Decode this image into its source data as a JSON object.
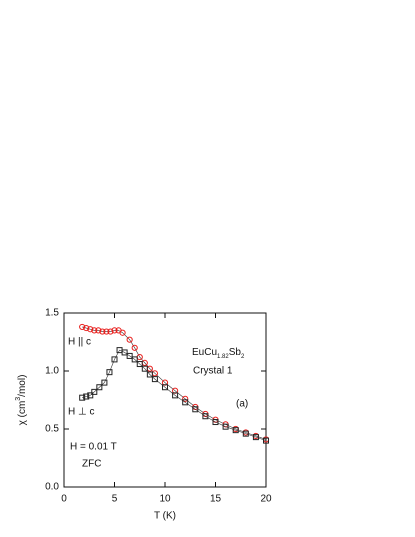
{
  "chart_data": {
    "type": "scatter",
    "xlabel": "T (K)",
    "ylabel_parts": [
      "χ (cm",
      "3",
      "/mol)"
    ],
    "formula_parts": [
      "EuCu",
      "1.82",
      "Sb",
      "2"
    ],
    "annotations": [
      "Crystal 1",
      "(a)",
      "H || c",
      "H ⊥ c",
      "H = 0.01 T",
      "ZFC"
    ],
    "xlim": [
      0,
      20
    ],
    "ylim": [
      0,
      1.5
    ],
    "xticks": [
      0,
      5,
      10,
      15,
      20
    ],
    "yticks": [
      {
        "value": 0,
        "label": "0.0"
      },
      {
        "value": 0.5,
        "label": "0.5"
      },
      {
        "value": 1,
        "label": "1.0"
      },
      {
        "value": 1.5,
        "label": "1.5"
      }
    ],
    "series": [
      {
        "marker": "circle",
        "color": "#e8201e",
        "x": [
          1.8,
          2.2,
          2.6,
          3.0,
          3.4,
          3.8,
          4.2,
          4.6,
          5.0,
          5.4,
          5.8,
          6.5,
          7,
          7.5,
          8,
          8.5,
          9,
          10,
          11,
          12,
          13,
          14,
          15,
          16,
          17,
          18,
          19,
          20
        ],
        "values": [
          1.38,
          1.37,
          1.36,
          1.35,
          1.35,
          1.34,
          1.34,
          1.34,
          1.35,
          1.35,
          1.33,
          1.27,
          1.2,
          1.12,
          1.07,
          1.02,
          0.98,
          0.9,
          0.83,
          0.76,
          0.69,
          0.63,
          0.58,
          0.54,
          0.5,
          0.47,
          0.44,
          0.41
        ]
      },
      {
        "marker": "square",
        "color": "#222222",
        "x": [
          1.8,
          2.2,
          2.6,
          3.0,
          3.5,
          4.0,
          4.5,
          5.0,
          5.5,
          6.0,
          6.5,
          7,
          7.5,
          8,
          8.5,
          9,
          10,
          11,
          12,
          13,
          14,
          15,
          16,
          17,
          18,
          19,
          20
        ],
        "values": [
          0.77,
          0.78,
          0.79,
          0.82,
          0.86,
          0.9,
          0.99,
          1.1,
          1.18,
          1.16,
          1.13,
          1.1,
          1.06,
          1.02,
          0.97,
          0.93,
          0.86,
          0.79,
          0.73,
          0.67,
          0.61,
          0.56,
          0.52,
          0.49,
          0.46,
          0.43,
          0.4
        ]
      }
    ]
  }
}
